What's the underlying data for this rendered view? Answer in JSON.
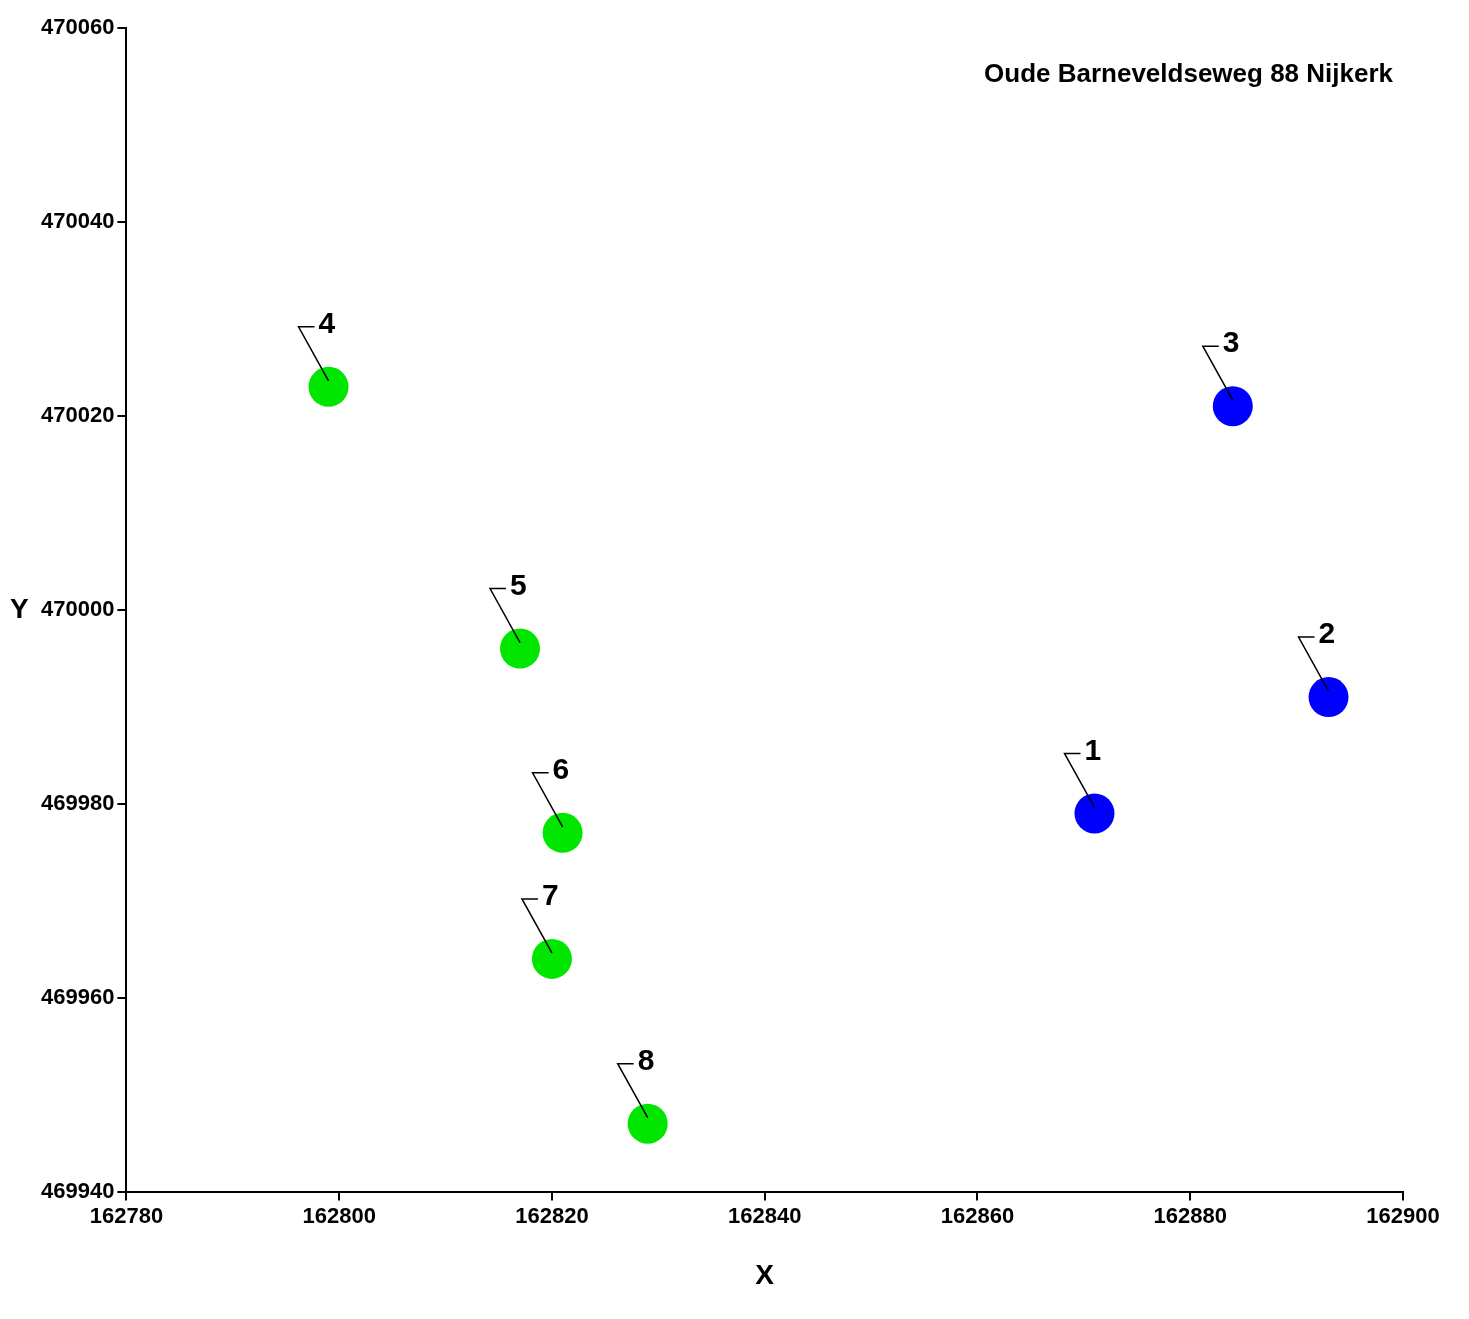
{
  "chart_data": {
    "type": "scatter",
    "title": "Oude Barneveldseweg 88 Nijkerk",
    "xlabel": "X",
    "ylabel": "Y",
    "series": [
      {
        "color": "#0000ff",
        "x": [
          162871,
          162893,
          162884
        ],
        "values": [
          469979,
          469991,
          470021
        ]
      },
      {
        "color": "#00e600",
        "x": [
          162799,
          162817,
          162821,
          162820,
          162829
        ],
        "values": [
          470023,
          469996,
          469977,
          469964,
          469947
        ]
      }
    ],
    "annotations": [
      {
        "text": "1",
        "x": 162871,
        "y": 469979
      },
      {
        "text": "2",
        "x": 162893,
        "y": 469991
      },
      {
        "text": "3",
        "x": 162884,
        "y": 470021
      },
      {
        "text": "4",
        "x": 162799,
        "y": 470023
      },
      {
        "text": "5",
        "x": 162817,
        "y": 469996
      },
      {
        "text": "6",
        "x": 162821,
        "y": 469977
      },
      {
        "text": "7",
        "x": 162820,
        "y": 469964
      },
      {
        "text": "8",
        "x": 162829,
        "y": 469947
      }
    ],
    "xlim": [
      162780,
      162900
    ],
    "xticks": [
      162780,
      162800,
      162820,
      162840,
      162860,
      162880,
      162900
    ],
    "ylim": [
      469940,
      470060
    ],
    "yticks": [
      469940,
      469960,
      469980,
      470000,
      470020,
      470040,
      470060
    ],
    "grid": false,
    "legend": false,
    "marker": "circle"
  }
}
